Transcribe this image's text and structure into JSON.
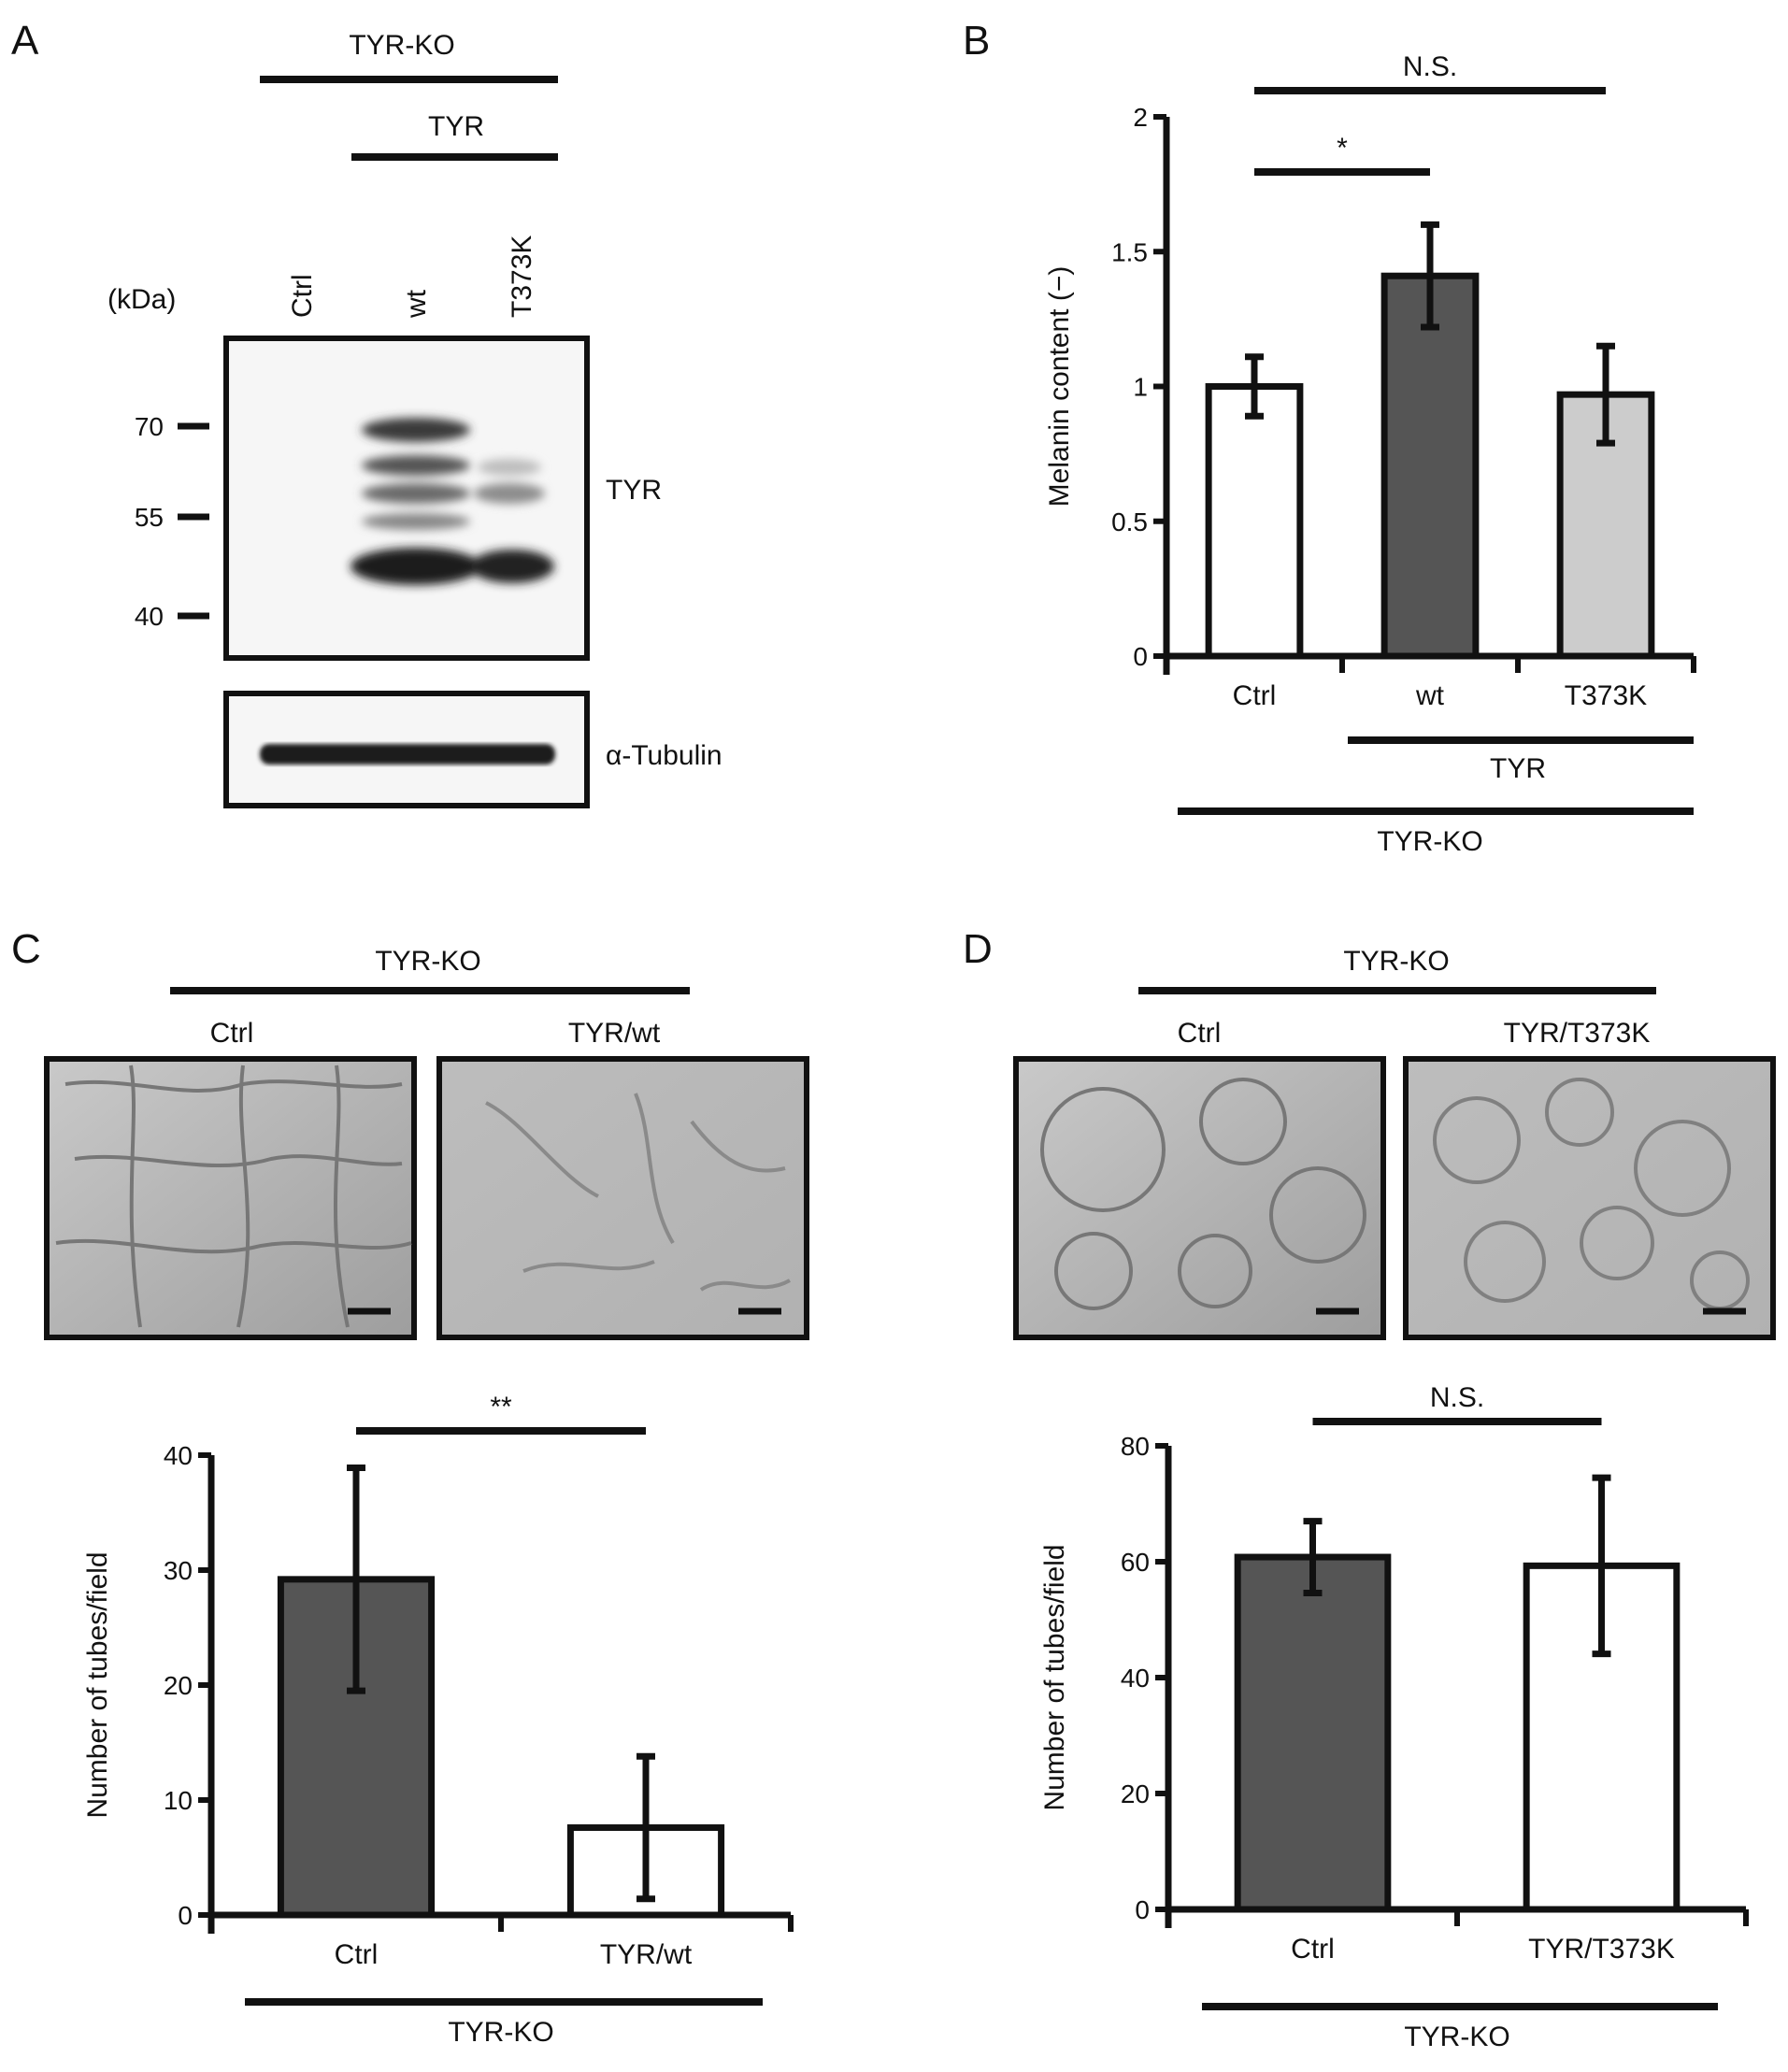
{
  "panels": {
    "A": {
      "letter": "A",
      "top_group": "TYR-KO",
      "sub_group": "TYR",
      "unit": "(kDa)",
      "lanes": [
        "Ctrl",
        "wt",
        "T373K"
      ],
      "markers": [
        "70",
        "55",
        "40"
      ],
      "blot_top_label": "TYR",
      "blot_bottom_label": "α-Tubulin"
    },
    "B": {
      "letter": "B"
    },
    "C": {
      "letter": "C",
      "group": "TYR-KO",
      "image_labels": [
        "Ctrl",
        "TYR/wt"
      ]
    },
    "D": {
      "letter": "D",
      "group": "TYR-KO",
      "image_labels": [
        "Ctrl",
        "TYR/T373K"
      ]
    }
  },
  "chart_data": [
    {
      "panel": "B",
      "type": "bar",
      "categories": [
        "Ctrl",
        "wt",
        "T373K"
      ],
      "values": [
        1.0,
        1.41,
        0.97
      ],
      "errors": [
        0.11,
        0.19,
        0.18
      ],
      "bar_colors": [
        "#ffffff",
        "#555555",
        "#cccccc"
      ],
      "ylabel": "Melanin content (−)",
      "ylim": [
        0,
        2
      ],
      "yticks": [
        "0",
        "0.5",
        "1",
        "1.5",
        "2"
      ],
      "ytick_values": [
        0,
        0.5,
        1,
        1.5,
        2
      ],
      "significance": [
        {
          "label": "*",
          "between": [
            "Ctrl",
            "wt"
          ]
        },
        {
          "label": "N.S.",
          "between": [
            "Ctrl",
            "T373K"
          ]
        }
      ],
      "group_labels": {
        "sub": "TYR",
        "main": "TYR-KO"
      }
    },
    {
      "panel": "C",
      "type": "bar",
      "categories": [
        "Ctrl",
        "TYR/wt"
      ],
      "values": [
        29.2,
        7.6
      ],
      "errors": [
        9.7,
        6.2
      ],
      "bar_colors": [
        "#555555",
        "#ffffff"
      ],
      "ylabel": "Number of tubes/field",
      "ylim": [
        0,
        40
      ],
      "yticks": [
        "0",
        "10",
        "20",
        "30",
        "40"
      ],
      "ytick_values": [
        0,
        10,
        20,
        30,
        40
      ],
      "significance": [
        {
          "label": "**",
          "between": [
            "Ctrl",
            "TYR/wt"
          ]
        }
      ],
      "group_labels": {
        "main": "TYR-KO"
      }
    },
    {
      "panel": "D",
      "type": "bar",
      "categories": [
        "Ctrl",
        "TYR/T373K"
      ],
      "values": [
        60.8,
        59.3
      ],
      "errors": [
        6.2,
        15.2
      ],
      "bar_colors": [
        "#555555",
        "#ffffff"
      ],
      "ylabel": "Number of tubes/field",
      "ylim": [
        0,
        80
      ],
      "yticks": [
        "0",
        "20",
        "40",
        "60",
        "80"
      ],
      "ytick_values": [
        0,
        20,
        40,
        60,
        80
      ],
      "significance": [
        {
          "label": "N.S.",
          "between": [
            "Ctrl",
            "TYR/T373K"
          ]
        }
      ],
      "group_labels": {
        "main": "TYR-KO"
      }
    }
  ]
}
